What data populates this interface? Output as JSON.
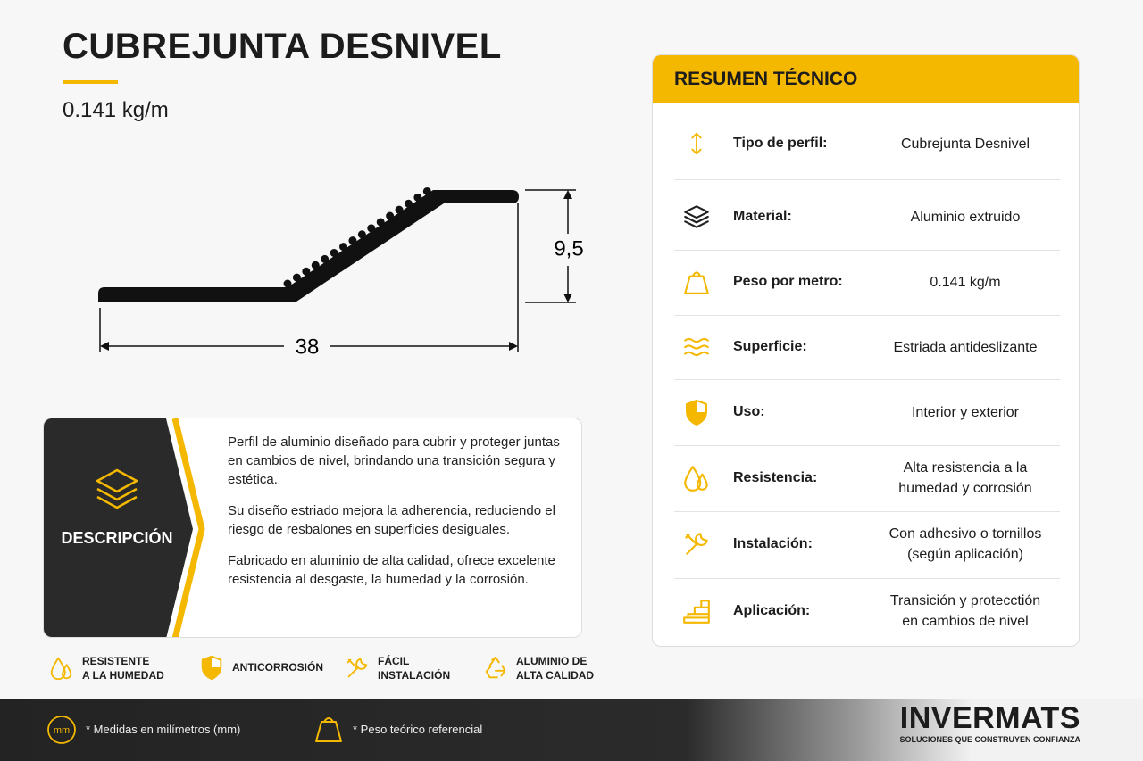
{
  "header": {
    "title": "CUBREJUNTA DESNIVEL",
    "weight": "0.141 kg/m"
  },
  "drawing": {
    "height": "9,5",
    "width": "38"
  },
  "description": {
    "label": "DESCRIPCIÓN",
    "paragraphs": [
      "Perfil de aluminio diseñado para cubrir y proteger juntas en cambios de nivel, brindando una transición segura y estética.",
      "Su diseño estriado mejora la adherencia, reduciendo el riesgo de resbalones en superficies desiguales.",
      "Fabricado en aluminio de alta calidad, ofrece excelente resistencia al desgaste, la humedad y la corrosión."
    ]
  },
  "features": [
    [
      "RESISTENTE",
      "A LA HUMEDAD"
    ],
    [
      "ANTICORROSIÓN"
    ],
    [
      "FÁCIL",
      "INSTALACIÓN"
    ],
    [
      "ALUMINIO DE",
      "ALTA CALIDAD"
    ]
  ],
  "summary": {
    "title": "RESUMEN TÉCNICO",
    "rows": [
      {
        "label": "Tipo de perfil:",
        "value": [
          "Cubrejunta Desnivel"
        ]
      },
      {
        "label": "Material:",
        "value": [
          "Aluminio extruido"
        ]
      },
      {
        "label": "Peso por metro:",
        "value": [
          "0.141 kg/m"
        ]
      },
      {
        "label": "Superficie:",
        "value": [
          "Estriada antideslizante"
        ]
      },
      {
        "label": "Uso:",
        "value": [
          "Interior y exterior"
        ]
      },
      {
        "label": "Resistencia:",
        "value": [
          "Alta resistencia a la",
          "humedad y corrosión"
        ]
      },
      {
        "label": "Instalación:",
        "value": [
          "Con adhesivo o tornillos",
          "(según aplicación)"
        ]
      },
      {
        "label": "Aplicación:",
        "value": [
          "Transición y protecctión",
          "en cambios de nivel"
        ]
      }
    ]
  },
  "footer": {
    "unit_icon": "mm",
    "notes": [
      "* Medidas en milímetros (mm)",
      "* Peso teórico referencial"
    ],
    "brand": "INVERMATS",
    "tagline": "SOLUCIONES QUE CONSTRUYEN CONFIANZA"
  }
}
